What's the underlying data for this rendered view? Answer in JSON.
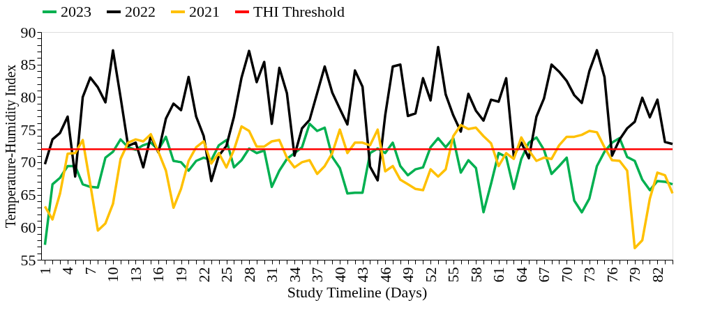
{
  "chart_data": {
    "type": "line",
    "xlabel": "Study Timeline (Days)",
    "ylabel": "Temperature-Humidity Index",
    "x": [
      1,
      2,
      3,
      4,
      5,
      6,
      7,
      8,
      9,
      10,
      11,
      12,
      13,
      14,
      15,
      16,
      17,
      18,
      19,
      20,
      21,
      22,
      23,
      24,
      25,
      26,
      27,
      28,
      29,
      30,
      31,
      32,
      33,
      34,
      35,
      36,
      37,
      38,
      39,
      40,
      41,
      42,
      43,
      44,
      45,
      46,
      47,
      48,
      49,
      50,
      51,
      52,
      53,
      54,
      55,
      56,
      57,
      58,
      59,
      60,
      61,
      62,
      63,
      64,
      65,
      66,
      67,
      68,
      69,
      70,
      71,
      72,
      73,
      74,
      75,
      76,
      77,
      78,
      79,
      80,
      81,
      82,
      83,
      84
    ],
    "series": [
      {
        "name": "2023",
        "color": "#00b050",
        "values": [
          57.3,
          66.6,
          67.6,
          69.4,
          69.4,
          66.6,
          66.2,
          66.1,
          70.7,
          71.6,
          73.5,
          72.3,
          71.9,
          72.6,
          73.0,
          71.9,
          73.9,
          70.2,
          70.0,
          68.7,
          70.2,
          70.7,
          70.3,
          72.6,
          73.4,
          69.2,
          70.3,
          72.1,
          71.4,
          71.8,
          66.2,
          68.7,
          70.5,
          71.4,
          72.3,
          75.9,
          74.8,
          75.3,
          70.8,
          69.1,
          65.2,
          65.3,
          65.3,
          71.4,
          72.1,
          71.4,
          73.0,
          69.4,
          68.0,
          68.9,
          69.2,
          72.3,
          73.7,
          72.3,
          73.7,
          68.4,
          70.3,
          69.1,
          62.3,
          66.7,
          71.4,
          70.8,
          65.9,
          70.5,
          73.0,
          73.8,
          71.9,
          68.2,
          69.4,
          70.7,
          64.1,
          62.3,
          64.4,
          69.4,
          71.6,
          73.0,
          73.7,
          70.8,
          70.2,
          67.3,
          65.7,
          67.1,
          67.0,
          66.6
        ]
      },
      {
        "name": "2022",
        "color": "#000000",
        "values": [
          69.7,
          73.5,
          74.5,
          77.0,
          67.8,
          80.0,
          83.0,
          81.5,
          79.2,
          87.2,
          80.0,
          72.5,
          73.0,
          69.2,
          74.0,
          71.5,
          76.7,
          79.0,
          78.0,
          83.1,
          77.0,
          74.0,
          67.1,
          71.0,
          72.5,
          77.0,
          83.0,
          87.1,
          82.3,
          85.4,
          75.9,
          84.5,
          80.6,
          71.0,
          75.2,
          76.5,
          80.6,
          84.7,
          80.7,
          78.2,
          75.8,
          84.1,
          81.6,
          69.3,
          67.2,
          77.2,
          84.7,
          85.0,
          77.1,
          77.5,
          82.9,
          79.5,
          87.7,
          80.4,
          77.2,
          74.7,
          80.5,
          77.9,
          76.4,
          79.6,
          79.3,
          82.9,
          71.0,
          73.0,
          70.6,
          77.0,
          79.8,
          85.0,
          83.9,
          82.5,
          80.3,
          79.1,
          84.0,
          87.2,
          83.1,
          71.0,
          73.5,
          75.2,
          76.2,
          79.9,
          76.9,
          79.6,
          73.1,
          72.8
        ]
      },
      {
        "name": "2021",
        "color": "#ffc000",
        "values": [
          63.2,
          61.2,
          65.2,
          71.3,
          71.4,
          73.4,
          66.6,
          59.5,
          60.6,
          63.6,
          70.5,
          73.0,
          73.5,
          73.2,
          74.3,
          71.6,
          68.7,
          63.0,
          65.9,
          70.2,
          72.3,
          73.2,
          69.8,
          71.4,
          69.2,
          71.9,
          75.5,
          74.8,
          72.4,
          72.4,
          73.2,
          73.4,
          70.7,
          69.2,
          70.0,
          70.3,
          68.2,
          69.4,
          71.4,
          75.0,
          71.4,
          73.0,
          73.0,
          72.6,
          75.0,
          68.6,
          69.4,
          67.3,
          66.6,
          65.9,
          65.7,
          68.9,
          67.8,
          68.9,
          74.0,
          75.7,
          75.1,
          75.3,
          74.0,
          72.9,
          69.4,
          71.4,
          70.5,
          73.8,
          71.8,
          70.2,
          70.7,
          70.5,
          72.6,
          73.9,
          73.9,
          74.2,
          74.8,
          74.6,
          72.3,
          70.3,
          70.2,
          68.7,
          56.8,
          58.0,
          64.4,
          68.4,
          68.0,
          65.2
        ]
      }
    ],
    "ref_lines": [
      {
        "axis": "y",
        "value": 72,
        "label": "THI Threshold",
        "color": "#ff0000"
      }
    ],
    "xlim": [
      0.5,
      84
    ],
    "xticks": [
      1,
      {
        "value": 2,
        "label": null
      },
      {
        "value": 3,
        "label": null
      },
      4,
      {
        "value": 5,
        "label": null
      },
      {
        "value": 6,
        "label": null
      },
      7,
      {
        "value": 8,
        "label": null
      },
      {
        "value": 9,
        "label": null
      },
      10,
      {
        "value": 11,
        "label": null
      },
      {
        "value": 12,
        "label": null
      },
      13,
      {
        "value": 14,
        "label": null
      },
      {
        "value": 15,
        "label": null
      },
      16,
      {
        "value": 17,
        "label": null
      },
      {
        "value": 18,
        "label": null
      },
      19,
      {
        "value": 20,
        "label": null
      },
      {
        "value": 21,
        "label": null
      },
      22,
      {
        "value": 23,
        "label": null
      },
      {
        "value": 24,
        "label": null
      },
      25,
      {
        "value": 26,
        "label": null
      },
      {
        "value": 27,
        "label": null
      },
      28,
      {
        "value": 29,
        "label": null
      },
      {
        "value": 30,
        "label": null
      },
      31,
      {
        "value": 32,
        "label": null
      },
      {
        "value": 33,
        "label": null
      },
      34,
      {
        "value": 35,
        "label": null
      },
      {
        "value": 36,
        "label": null
      },
      37,
      {
        "value": 38,
        "label": null
      },
      {
        "value": 39,
        "label": null
      },
      40,
      {
        "value": 41,
        "label": null
      },
      {
        "value": 42,
        "label": null
      },
      43,
      {
        "value": 44,
        "label": null
      },
      {
        "value": 45,
        "label": null
      },
      46,
      {
        "value": 47,
        "label": null
      },
      {
        "value": 48,
        "label": null
      },
      49,
      {
        "value": 50,
        "label": null
      },
      {
        "value": 51,
        "label": null
      },
      52,
      {
        "value": 53,
        "label": null
      },
      {
        "value": 54,
        "label": null
      },
      55,
      {
        "value": 56,
        "label": null
      },
      {
        "value": 57,
        "label": null
      },
      58,
      {
        "value": 59,
        "label": null
      },
      {
        "value": 60,
        "label": null
      },
      61,
      {
        "value": 62,
        "label": null
      },
      {
        "value": 63,
        "label": null
      },
      64,
      {
        "value": 65,
        "label": null
      },
      {
        "value": 66,
        "label": null
      },
      67,
      {
        "value": 68,
        "label": null
      },
      {
        "value": 69,
        "label": null
      },
      70,
      {
        "value": 71,
        "label": null
      },
      {
        "value": 72,
        "label": null
      },
      73,
      {
        "value": 74,
        "label": null
      },
      {
        "value": 75,
        "label": null
      },
      76,
      {
        "value": 77,
        "label": null
      },
      {
        "value": 78,
        "label": null
      },
      79,
      {
        "value": 80,
        "label": null
      },
      {
        "value": 81,
        "label": null
      },
      82,
      {
        "value": 83,
        "label": null
      },
      {
        "value": 84,
        "label": null
      }
    ],
    "ylim": [
      55,
      90
    ],
    "yticks": [
      55,
      {
        "value": 56,
        "label": null
      },
      {
        "value": 57,
        "label": null
      },
      {
        "value": 58,
        "label": null
      },
      {
        "value": 59,
        "label": null
      },
      60,
      {
        "value": 61,
        "label": null
      },
      {
        "value": 62,
        "label": null
      },
      {
        "value": 63,
        "label": null
      },
      {
        "value": 64,
        "label": null
      },
      65,
      {
        "value": 66,
        "label": null
      },
      {
        "value": 67,
        "label": null
      },
      {
        "value": 68,
        "label": null
      },
      {
        "value": 69,
        "label": null
      },
      70,
      {
        "value": 71,
        "label": null
      },
      {
        "value": 72,
        "label": null
      },
      {
        "value": 73,
        "label": null
      },
      {
        "value": 74,
        "label": null
      },
      75,
      {
        "value": 76,
        "label": null
      },
      {
        "value": 77,
        "label": null
      },
      {
        "value": 78,
        "label": null
      },
      {
        "value": 79,
        "label": null
      },
      80,
      {
        "value": 81,
        "label": null
      },
      {
        "value": 82,
        "label": null
      },
      {
        "value": 83,
        "label": null
      },
      {
        "value": 84,
        "label": null
      },
      85,
      {
        "value": 86,
        "label": null
      },
      {
        "value": 87,
        "label": null
      },
      {
        "value": 88,
        "label": null
      },
      {
        "value": 89,
        "label": null
      },
      90
    ],
    "grid": false,
    "legend": "top",
    "marker": "none",
    "line_style": "solid"
  }
}
